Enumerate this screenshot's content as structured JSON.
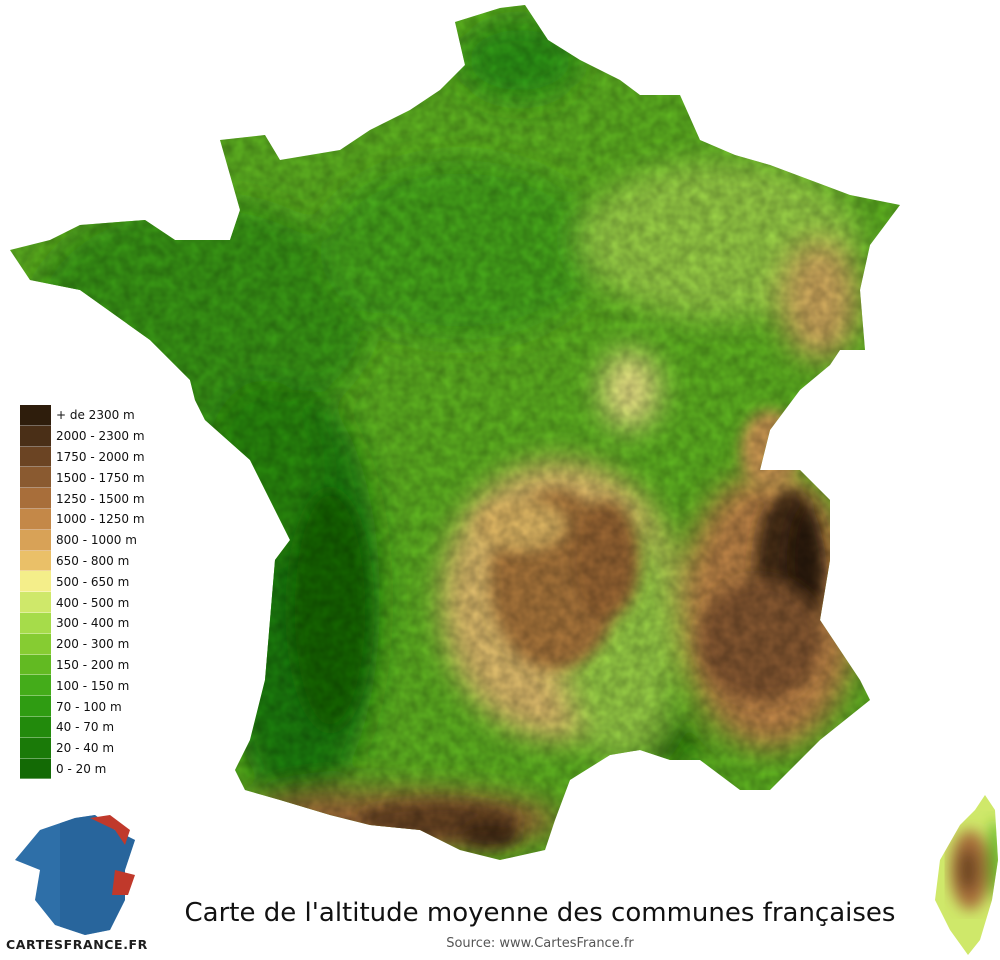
{
  "map": {
    "title": "Carte de l'altitude moyenne des communes françaises",
    "source": "Source: www.CartesFrance.fr",
    "logo_text": "CartesFrance.fr"
  },
  "legend": [
    {
      "label": "+ de 2300 m",
      "color": "#2e1d0c"
    },
    {
      "label": "2000 - 2300 m",
      "color": "#4a2f17"
    },
    {
      "label": "1750 - 2000 m",
      "color": "#6b4423"
    },
    {
      "label": "1500 - 1750 m",
      "color": "#8a5a30"
    },
    {
      "label": "1250 - 1500 m",
      "color": "#a86e3a"
    },
    {
      "label": "1000 - 1250 m",
      "color": "#c48848"
    },
    {
      "label": "800 - 1000 m",
      "color": "#d8a257"
    },
    {
      "label": "650 - 800 m",
      "color": "#eac068"
    },
    {
      "label": "500 - 650 m",
      "color": "#f4ee8a"
    },
    {
      "label": "400 - 500 m",
      "color": "#cfe86a"
    },
    {
      "label": "300 - 400 m",
      "color": "#a6dc4a"
    },
    {
      "label": "200 - 300 m",
      "color": "#86cc32"
    },
    {
      "label": "150 - 200 m",
      "color": "#62ba22"
    },
    {
      "label": "100 - 150 m",
      "color": "#44ac1a"
    },
    {
      "label": "70 - 100 m",
      "color": "#2f9c12"
    },
    {
      "label": "40 - 70 m",
      "color": "#228a0c"
    },
    {
      "label": "20 - 40 m",
      "color": "#1a7a08"
    },
    {
      "label": "0 - 20 m",
      "color": "#136a05"
    }
  ]
}
